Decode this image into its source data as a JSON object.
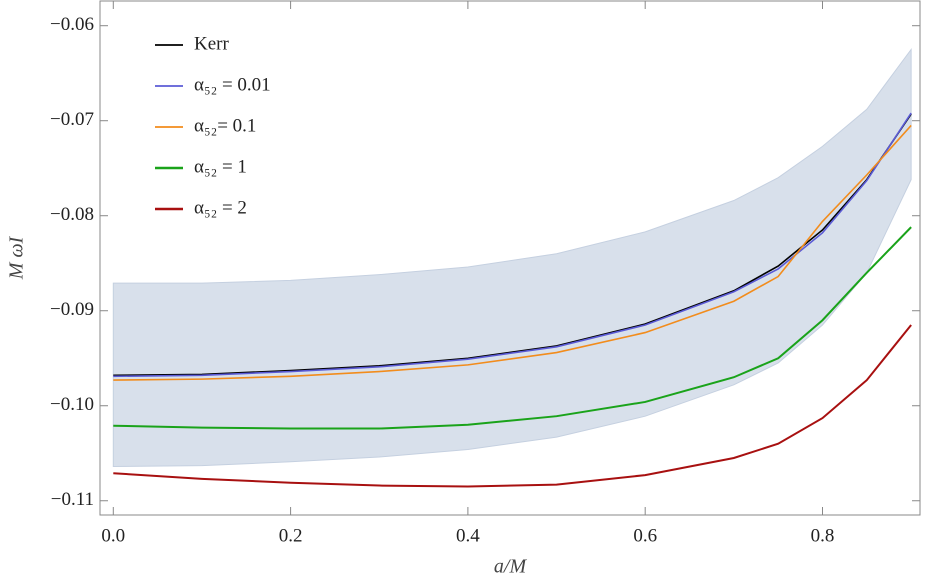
{
  "chart_data": {
    "type": "line",
    "x_label": "a/M",
    "y_label": "M ωI",
    "x": [
      0,
      0.1,
      0.2,
      0.3,
      0.4,
      0.5,
      0.6,
      0.7,
      0.75,
      0.8,
      0.85,
      0.9
    ],
    "band": {
      "color": "#d8e0eb",
      "upper": [
        -0.0871,
        -0.0871,
        -0.0868,
        -0.0862,
        -0.0854,
        -0.084,
        -0.0817,
        -0.0784,
        -0.076,
        -0.0727,
        -0.0688,
        -0.0625
      ],
      "lower": [
        -0.1064,
        -0.1063,
        -0.1059,
        -0.1054,
        -0.1046,
        -0.1033,
        -0.1011,
        -0.0978,
        -0.0955,
        -0.0915,
        -0.086,
        -0.0762
      ]
    },
    "series": [
      {
        "name": "Kerr",
        "color": "#000000",
        "values": [
          -0.0968,
          -0.0967,
          -0.0963,
          -0.0958,
          -0.095,
          -0.0937,
          -0.0914,
          -0.0879,
          -0.0853,
          -0.0815,
          -0.0762,
          -0.0693
        ]
      },
      {
        "name": "α₅₂ = 0.01",
        "color": "#5b5bd6",
        "values": [
          -0.0969,
          -0.0968,
          -0.0964,
          -0.0959,
          -0.0951,
          -0.0938,
          -0.0915,
          -0.088,
          -0.0856,
          -0.0818,
          -0.0763,
          -0.0692
        ]
      },
      {
        "name": "α₅₂= 0.1",
        "color": "#f28c1c",
        "values": [
          -0.0973,
          -0.0972,
          -0.0969,
          -0.0964,
          -0.0957,
          -0.0944,
          -0.0923,
          -0.089,
          -0.0864,
          -0.0806,
          -0.0757,
          -0.0705
        ]
      },
      {
        "name": "α₅₂ = 1",
        "color": "#1aa31a",
        "values": [
          -0.1021,
          -0.1023,
          -0.1024,
          -0.1024,
          -0.102,
          -0.1011,
          -0.0996,
          -0.097,
          -0.095,
          -0.091,
          -0.086,
          -0.0812
        ]
      },
      {
        "name": "α₅₂ = 2",
        "color": "#a81010",
        "values": [
          -0.1071,
          -0.1077,
          -0.1081,
          -0.1084,
          -0.1085,
          -0.1083,
          -0.1073,
          -0.1055,
          -0.104,
          -0.1013,
          -0.0973,
          -0.0915
        ]
      }
    ],
    "xlim": [
      -0.015,
      0.91
    ],
    "ylim": [
      -0.1115,
      -0.0574
    ],
    "xticks": [
      {
        "value": 0,
        "label": "0.0"
      },
      0.2,
      0.4,
      0.6,
      0.8
    ],
    "yticks": [
      {
        "value": -0.06,
        "label": "−0.06"
      },
      {
        "value": -0.07,
        "label": "−0.07"
      },
      {
        "value": -0.08,
        "label": "−0.08"
      },
      {
        "value": -0.09,
        "label": "−0.09"
      },
      {
        "value": -0.1,
        "label": "−0.10"
      },
      {
        "value": -0.11,
        "label": "−0.11"
      }
    ],
    "legend": "upper left"
  }
}
